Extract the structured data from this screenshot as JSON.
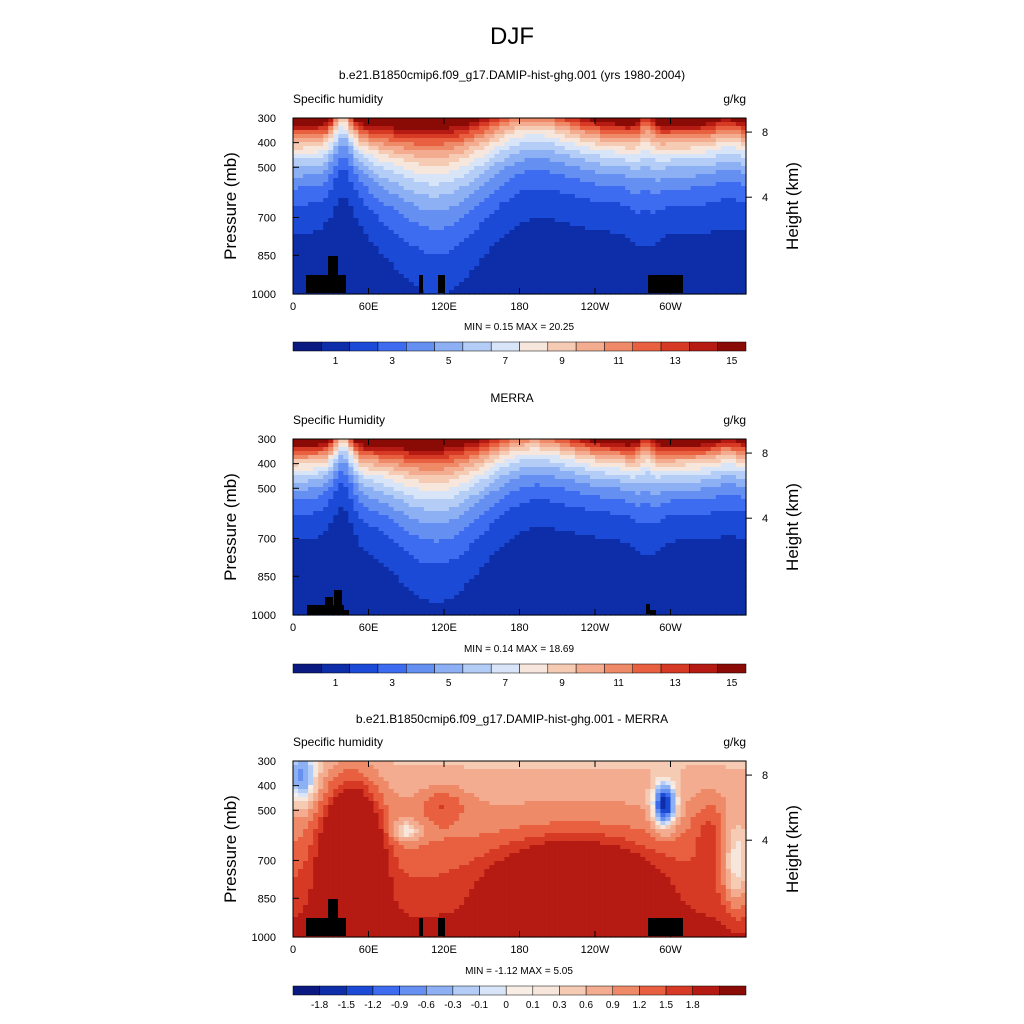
{
  "figure_title": "DJF",
  "colors": {
    "full": [
      "#0b1a80",
      "#0d2ea8",
      "#1b4bd6",
      "#3d6cf0",
      "#6590f2",
      "#8cb0f3",
      "#b4cdf6",
      "#d8e5f8",
      "#f7e6dc",
      "#f6cbb4",
      "#f3ac90",
      "#ef8a68",
      "#e86040",
      "#d63a24",
      "#b51b12",
      "#8a0a06"
    ],
    "diff": [
      "#0b1a80",
      "#0d2ea8",
      "#1b4bd6",
      "#3d6cf0",
      "#6590f2",
      "#8cb0f3",
      "#b4cdf6",
      "#d8e5f8",
      "#f8eee6",
      "#f7e6dc",
      "#f6cbb4",
      "#f3ac90",
      "#ef8a68",
      "#e86040",
      "#d63a24",
      "#b51b12",
      "#8a0a06"
    ]
  },
  "chart_data": [
    {
      "type": "contour",
      "title": "b.e21.B1850cmip6.f09_g17.DAMIP-hist-ghg.001 (yrs 1980-2004)",
      "left_label": "Specific humidity",
      "right_label": "g/kg",
      "ylabel": "Pressure (mb)",
      "y2label": "Height (km)",
      "x_ticks": [
        "0",
        "60E",
        "120E",
        "180",
        "120W",
        "60W"
      ],
      "y_ticks": [
        "300",
        "400",
        "500",
        "700",
        "850",
        "1000"
      ],
      "y2_ticks": [
        "8",
        "4"
      ],
      "stats": "MIN =   0.15  MAX =  20.25",
      "colorbar_labels": [
        "1",
        "3",
        "5",
        "7",
        "9",
        "11",
        "13",
        "15"
      ],
      "levels": [
        0,
        1,
        2,
        3,
        4,
        5,
        6,
        7,
        8,
        9,
        10,
        11,
        12,
        13,
        14,
        15
      ]
    },
    {
      "type": "contour",
      "title": "MERRA",
      "left_label": "Specific Humidity",
      "right_label": "g/kg",
      "ylabel": "Pressure (mb)",
      "y2label": "Height (km)",
      "x_ticks": [
        "0",
        "60E",
        "120E",
        "180",
        "120W",
        "60W"
      ],
      "y_ticks": [
        "300",
        "400",
        "500",
        "700",
        "850",
        "1000"
      ],
      "y2_ticks": [
        "8",
        "4"
      ],
      "stats": "MIN =   0.14  MAX =  18.69",
      "colorbar_labels": [
        "1",
        "3",
        "5",
        "7",
        "9",
        "11",
        "13",
        "15"
      ],
      "levels": [
        0,
        1,
        2,
        3,
        4,
        5,
        6,
        7,
        8,
        9,
        10,
        11,
        12,
        13,
        14,
        15
      ]
    },
    {
      "type": "contour",
      "title": "b.e21.B1850cmip6.f09_g17.DAMIP-hist-ghg.001 - MERRA",
      "left_label": "Specific humidity",
      "right_label": "g/kg",
      "ylabel": "Pressure (mb)",
      "y2label": "Height (km)",
      "x_ticks": [
        "0",
        "60E",
        "120E",
        "180",
        "120W",
        "60W"
      ],
      "y_ticks": [
        "300",
        "400",
        "500",
        "700",
        "850",
        "1000"
      ],
      "y2_ticks": [
        "8",
        "4"
      ],
      "stats": "MIN =  -1.12  MAX =   5.05",
      "colorbar_labels": [
        "-1.8",
        "-1.5",
        "-1.2",
        "-0.9",
        "-0.6",
        "-0.3",
        "-0.1",
        "0",
        "0.1",
        "0.3",
        "0.6",
        "0.9",
        "1.2",
        "1.5",
        "1.8"
      ],
      "levels": [
        -1.8,
        -1.5,
        -1.2,
        -0.9,
        -0.6,
        -0.3,
        -0.1,
        0,
        0.1,
        0.3,
        0.6,
        0.9,
        1.2,
        1.5,
        1.8
      ]
    }
  ]
}
